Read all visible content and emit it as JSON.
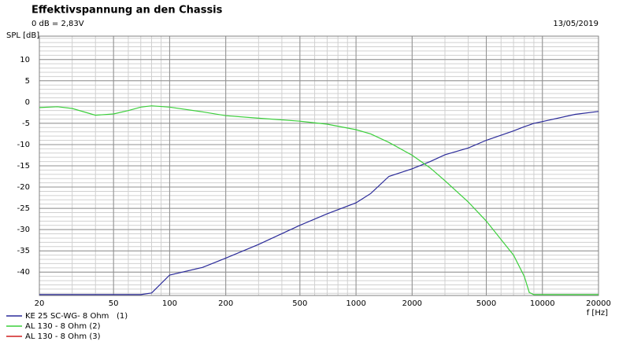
{
  "chart_data": {
    "type": "line",
    "title": "Effektivspannung an den Chassis",
    "subtitle": "0 dB = 2,83V",
    "date": "13/05/2019",
    "y_label": "SPL [dB]",
    "x_label": "f [Hz]",
    "log_x": true,
    "grid": true,
    "minor_grid": true,
    "legend": "bottom-left",
    "xlim": [
      20,
      20000
    ],
    "xticks": [
      20,
      50,
      100,
      200,
      500,
      1000,
      2000,
      5000,
      10000,
      20000
    ],
    "ylim": [
      -45.5,
      15.5
    ],
    "yticks": [
      10,
      5,
      0,
      -5,
      -10,
      -15,
      -20,
      -25,
      -30,
      -35,
      -40
    ],
    "x": [
      20,
      25,
      30,
      40,
      50,
      60,
      70,
      80,
      100,
      150,
      200,
      300,
      500,
      700,
      1000,
      1200,
      1500,
      2000,
      2500,
      3000,
      4000,
      5000,
      7000,
      8000,
      8500,
      9000,
      10000,
      15000,
      20000
    ],
    "series": [
      {
        "name": "KE 25 SC-WG- 8 Ohm   (1)",
        "color": "#2b2b9a",
        "values": [
          -45.3,
          -45.3,
          -45.3,
          -45.3,
          -45.3,
          -45.3,
          -45.3,
          -44.9,
          -40.7,
          -38.9,
          -36.7,
          -33.5,
          -29,
          -26.3,
          -23.7,
          -21.5,
          -17.5,
          -15.7,
          -14,
          -12.4,
          -10.8,
          -9,
          -6.8,
          -5.8,
          -5.4,
          -5,
          -4.6,
          -2.9,
          -2.2
        ]
      },
      {
        "name": "AL 130 - 8 Ohm (2)",
        "color": "#3ccf3c",
        "values": [
          -1.3,
          -1.1,
          -1.5,
          -3.1,
          -2.8,
          -2,
          -1.2,
          -0.9,
          -1.2,
          -2.3,
          -3.2,
          -3.8,
          -4.5,
          -5.2,
          -6.5,
          -7.5,
          -9.5,
          -12.5,
          -15.5,
          -18.5,
          -23.5,
          -28,
          -36,
          -41,
          -44.8,
          -45.3,
          -45.3,
          -45.3,
          -45.3
        ]
      },
      {
        "name": "AL 130 - 8 Ohm (3)",
        "color": "#d02020",
        "values": [
          null,
          null,
          null,
          null,
          null,
          null,
          null,
          null,
          null,
          null,
          null,
          null,
          null,
          null,
          null,
          null,
          null,
          null,
          null,
          null,
          null,
          null,
          null,
          null,
          null,
          null,
          null,
          null,
          null
        ]
      }
    ]
  }
}
